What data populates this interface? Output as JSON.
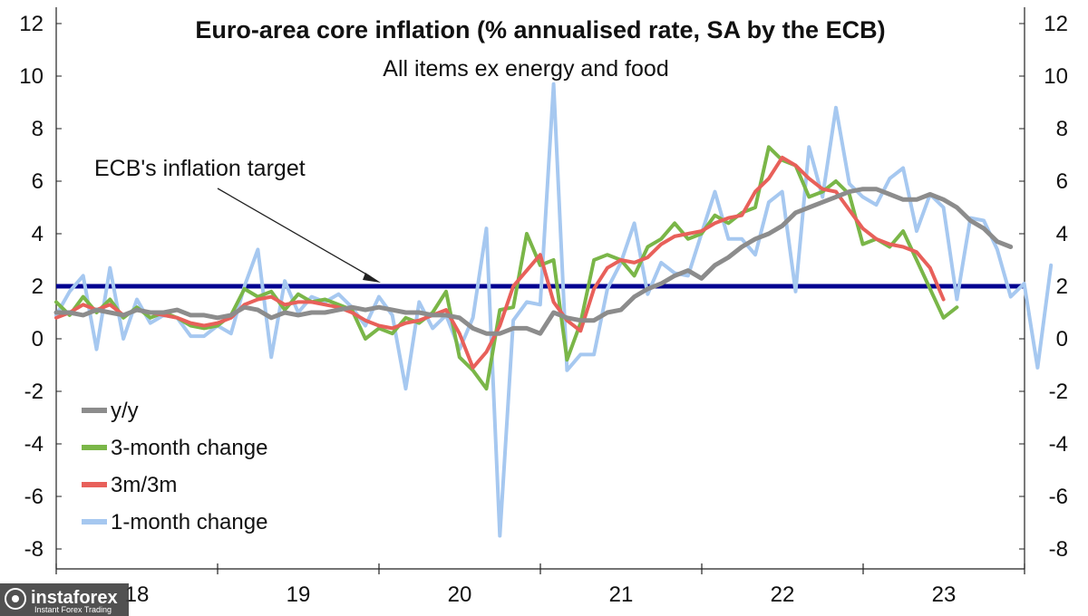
{
  "chart_data": {
    "type": "line",
    "title": "Euro-area core inflation (% annualised rate, SA by the ECB)",
    "subtitle": "All items ex energy and food",
    "ylim": [
      -8,
      12
    ],
    "yticks": [
      -8,
      -6,
      -4,
      -2,
      0,
      2,
      4,
      6,
      8,
      10,
      12
    ],
    "year_labels": [
      "18",
      "19",
      "20",
      "21",
      "22",
      "23"
    ],
    "x_start": 2018.0,
    "month_step": 0.0833,
    "target": {
      "value": 2,
      "label": "ECB's inflation target",
      "color": "#000090"
    },
    "series": [
      {
        "name": "1-month change",
        "color": "#a6c8f0",
        "width": 4,
        "values": [
          0.9,
          1.8,
          2.4,
          -0.4,
          2.7,
          0.0,
          1.5,
          0.6,
          0.9,
          0.8,
          0.1,
          0.1,
          0.5,
          0.2,
          2.0,
          3.4,
          -0.7,
          2.2,
          1.0,
          1.6,
          1.4,
          1.7,
          1.2,
          0.5,
          1.6,
          0.9,
          -1.9,
          1.4,
          0.4,
          0.9,
          -0.4,
          0.8,
          4.2,
          -7.5,
          0.7,
          1.4,
          1.3,
          9.7,
          -1.2,
          -0.6,
          -0.6,
          1.9,
          2.9,
          4.4,
          1.7,
          2.9,
          2.5,
          2.4,
          4.0,
          5.6,
          3.8,
          3.8,
          3.2,
          5.2,
          5.6,
          1.8,
          7.3,
          5.4,
          8.8,
          5.9,
          5.4,
          5.1,
          6.1,
          6.5,
          4.1,
          5.5,
          5.0,
          1.5,
          4.6,
          4.5,
          3.4,
          1.6,
          2.1,
          -1.1,
          2.8
        ]
      },
      {
        "name": "3-month change",
        "color": "#7ab648",
        "width": 4,
        "values": [
          1.4,
          0.9,
          1.6,
          1.0,
          1.5,
          0.8,
          1.2,
          0.8,
          1.0,
          0.8,
          0.5,
          0.4,
          0.5,
          0.9,
          1.9,
          1.6,
          1.8,
          1.1,
          1.7,
          1.4,
          1.5,
          1.3,
          1.1,
          0.0,
          0.4,
          0.2,
          0.8,
          0.6,
          1.0,
          1.8,
          -0.7,
          -1.2,
          -1.9,
          1.1,
          1.2,
          4.0,
          2.8,
          3.0,
          -0.8,
          0.6,
          3.0,
          3.2,
          3.0,
          2.4,
          3.5,
          3.8,
          4.4,
          3.8,
          4.0,
          4.7,
          4.4,
          4.8,
          5.0,
          7.3,
          6.8,
          6.6,
          5.4,
          5.6,
          6.0,
          5.5,
          3.6,
          3.8,
          3.5,
          4.1,
          3.0,
          1.9,
          0.8,
          1.2
        ]
      },
      {
        "name": "3m/3m",
        "color": "#e8605a",
        "width": 4,
        "values": [
          0.8,
          1.0,
          1.3,
          1.1,
          1.3,
          0.9,
          1.1,
          1.0,
          0.9,
          0.8,
          0.6,
          0.5,
          0.6,
          0.8,
          1.3,
          1.5,
          1.6,
          1.3,
          1.4,
          1.4,
          1.3,
          1.2,
          1.0,
          0.7,
          0.5,
          0.4,
          0.6,
          0.7,
          0.9,
          1.1,
          0.2,
          -1.1,
          -0.5,
          0.5,
          2.0,
          2.6,
          3.2,
          1.4,
          0.7,
          0.3,
          1.9,
          2.7,
          3.0,
          2.9,
          3.1,
          3.6,
          3.9,
          4.0,
          4.1,
          4.4,
          4.6,
          4.7,
          5.6,
          6.1,
          6.9,
          6.6,
          6.1,
          5.7,
          5.6,
          4.9,
          4.2,
          3.8,
          3.6,
          3.5,
          3.3,
          2.7,
          1.5
        ]
      },
      {
        "name": "y/y",
        "color": "#8c8c8c",
        "width": 5,
        "values": [
          1.0,
          1.0,
          0.9,
          1.1,
          1.0,
          0.9,
          1.1,
          1.0,
          1.0,
          1.1,
          0.9,
          0.9,
          0.8,
          0.9,
          1.2,
          1.1,
          0.8,
          1.0,
          0.9,
          1.0,
          1.0,
          1.1,
          1.2,
          1.1,
          1.2,
          1.1,
          1.0,
          1.0,
          0.9,
          0.9,
          0.8,
          0.4,
          0.2,
          0.2,
          0.4,
          0.4,
          0.2,
          1.0,
          0.8,
          0.7,
          0.7,
          1.0,
          1.1,
          1.6,
          1.9,
          2.1,
          2.4,
          2.6,
          2.3,
          2.8,
          3.1,
          3.5,
          3.8,
          4.0,
          4.3,
          4.8,
          5.0,
          5.2,
          5.4,
          5.6,
          5.7,
          5.7,
          5.5,
          5.3,
          5.3,
          5.5,
          5.3,
          5.0,
          4.5,
          4.2,
          3.7,
          3.5
        ]
      }
    ],
    "legend": [
      "y/y",
      "3-month change",
      "3m/3m",
      "1-month change"
    ]
  },
  "watermark": {
    "brand": "instaforex",
    "tagline": "Instant Forex Trading"
  }
}
